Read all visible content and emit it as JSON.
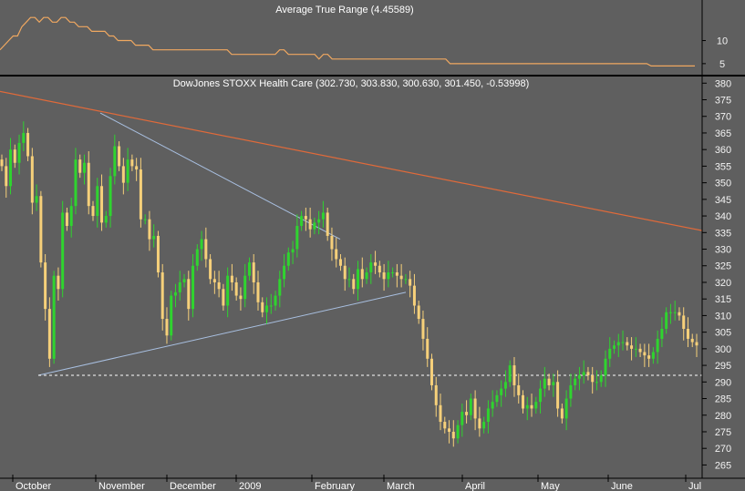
{
  "chart_data": [
    {
      "type": "line",
      "title": "Average True Range (4.45589)",
      "series": [
        {
          "values": [
            8,
            9,
            10,
            11,
            11,
            13,
            14,
            15,
            15,
            14,
            15,
            15,
            14,
            14,
            15,
            15,
            14,
            14,
            13,
            13,
            13,
            12,
            12,
            12,
            12,
            11,
            11,
            10,
            10,
            10,
            10,
            9,
            9,
            9,
            9,
            8,
            8,
            8,
            8,
            8,
            8,
            8,
            8,
            8,
            8,
            8,
            8,
            8,
            8,
            8,
            8,
            8,
            8,
            7,
            7,
            7,
            7,
            7,
            7,
            7,
            7,
            7,
            7,
            7,
            8,
            8,
            7,
            7,
            7,
            7,
            7,
            7,
            7,
            6,
            7,
            7,
            6,
            6,
            6,
            6,
            6,
            6,
            6,
            6,
            6,
            6,
            6,
            6,
            6,
            6,
            6,
            6,
            6,
            6,
            6,
            6,
            6,
            6,
            6,
            6,
            6,
            6,
            6,
            5,
            5,
            5,
            5,
            5,
            5,
            5,
            5,
            5,
            5,
            5,
            5,
            5,
            5,
            5,
            5,
            5,
            5,
            5,
            5,
            5,
            5,
            5,
            5,
            5,
            5,
            5,
            5,
            5,
            5,
            5,
            5,
            5,
            5,
            5,
            5,
            5,
            5,
            5,
            5,
            5,
            5,
            5,
            5,
            5,
            5,
            4.5,
            4.5,
            4.5,
            4.5,
            4.5,
            4.5,
            4.5,
            4.5,
            4.5,
            4.5,
            4.5
          ]
        }
      ],
      "yticks": [
        5,
        10
      ],
      "ylim": [
        3,
        18
      ],
      "colors": {
        "line": "#f0a860"
      }
    },
    {
      "type": "candlestick",
      "title": "DowJones STOXX Health Care (302.730, 303.830, 300.630, 301.450, -0.53998)",
      "yticks": [
        265,
        270,
        275,
        280,
        285,
        290,
        295,
        300,
        305,
        310,
        315,
        320,
        325,
        330,
        335,
        340,
        345,
        350,
        355,
        360,
        365,
        370,
        375,
        380
      ],
      "ylim": [
        261,
        382
      ],
      "xlabels": [
        "October",
        "November",
        "December",
        "2009",
        "February",
        "March",
        "April",
        "May",
        "June",
        "Jul"
      ],
      "closes": [
        355,
        349,
        360,
        356,
        362,
        365,
        358,
        344,
        346,
        326,
        312,
        297,
        322,
        318,
        341,
        337,
        343,
        357,
        353,
        356,
        343,
        340,
        349,
        338,
        340,
        352,
        361,
        355,
        350,
        357,
        355,
        354,
        339,
        339,
        333,
        334,
        323,
        309,
        304,
        316,
        317,
        320,
        321,
        312,
        325,
        330,
        333,
        327,
        321,
        320,
        318,
        313,
        322,
        320,
        316,
        315,
        322,
        326,
        320,
        314,
        311,
        313,
        313,
        316,
        321,
        325,
        329,
        330,
        337,
        340,
        339,
        336,
        338,
        339,
        341,
        334,
        330,
        327,
        325,
        321,
        321,
        318,
        324,
        321,
        323,
        326,
        325,
        323,
        321,
        323,
        323,
        322,
        321,
        321,
        319,
        313,
        309,
        303,
        297,
        289,
        283,
        278,
        276,
        275,
        273,
        277,
        281,
        280,
        285,
        279,
        276,
        278,
        282,
        284,
        286,
        288,
        290,
        295,
        289,
        286,
        282,
        283,
        282,
        284,
        288,
        291,
        289,
        290,
        282,
        279,
        285,
        289,
        291,
        292,
        293,
        292,
        290,
        290,
        292,
        297,
        300,
        301,
        302,
        302,
        301,
        300,
        300,
        299,
        298,
        297,
        299,
        303,
        306,
        311,
        311,
        311,
        310,
        306,
        303,
        302,
        301
      ],
      "start_close_note_free": true,
      "reference_lines": {
        "support_level": 292
      },
      "colors": {
        "up": "#2fd42f",
        "down": "#f6d07a",
        "trend_long": "#e06a3a",
        "triangle": "#a8bfe0",
        "dashed": "#ffffff"
      }
    }
  ]
}
